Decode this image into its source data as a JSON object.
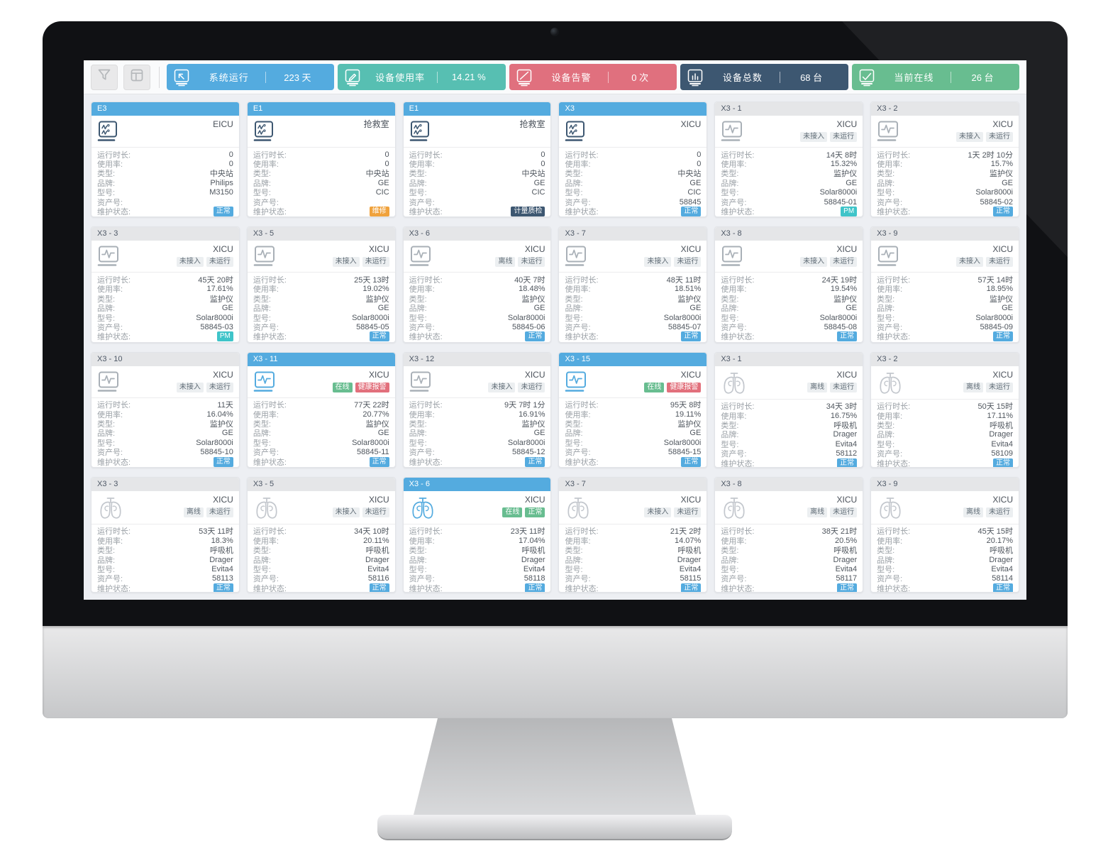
{
  "toolbar": {
    "buttons": [
      {
        "id": "filter",
        "icon": "funnel-icon"
      },
      {
        "id": "layout",
        "icon": "layout-icon"
      }
    ],
    "stats": [
      {
        "id": "system-uptime",
        "icon": "screen-cursor-icon",
        "label": "系统运行",
        "value": "223 天",
        "color": "#54abdf"
      },
      {
        "id": "usage-rate",
        "icon": "screen-edit-icon",
        "label": "设备使用率",
        "value": "14.21 %",
        "color": "#57bfb2"
      },
      {
        "id": "device-alerts",
        "icon": "screen-slash-icon",
        "label": "设备告警",
        "value": "0 次",
        "color": "#e0707e"
      },
      {
        "id": "device-total",
        "icon": "bar-chart-icon",
        "label": "设备总数",
        "value": "68 台",
        "color": "#3d5771"
      },
      {
        "id": "online-now",
        "icon": "screen-check-icon",
        "label": "当前在线",
        "value": "26 台",
        "color": "#68bd90"
      }
    ]
  },
  "field_labels": {
    "uptime": "运行时长:",
    "usage": "使用率:",
    "type": "类型:",
    "brand": "品牌:",
    "model": "型号:",
    "asset": "资产号:",
    "maintenance": "维护状态:"
  },
  "colors": {
    "accent_blue": "#54abdf",
    "navy": "#3d5771",
    "icon_gray": "#a9b0b7",
    "lungs_gray": "#c3c7cd",
    "badge_styles": {
      "gray": {
        "bg": "#eceff1",
        "fg": "#5f6b75"
      },
      "blue": {
        "bg": "#54abdf",
        "fg": "#ffffff"
      },
      "orange": {
        "bg": "#f0a23c",
        "fg": "#ffffff"
      },
      "navy": {
        "bg": "#3d5771",
        "fg": "#ffffff"
      },
      "teal": {
        "bg": "#3fc4c9",
        "fg": "#ffffff"
      },
      "green": {
        "bg": "#68bd90",
        "fg": "#ffffff"
      },
      "red": {
        "bg": "#e2707c",
        "fg": "#ffffff"
      }
    }
  },
  "cards": [
    {
      "title": "E3",
      "header": "blue",
      "icon": "central-station-icon",
      "active": false,
      "location": "EICU",
      "badges": [],
      "uptime": "0",
      "usage": "0",
      "type": "中央站",
      "brand": "Philips",
      "model": "M3150",
      "asset": "",
      "maint": {
        "text": "正常",
        "style": "blue"
      }
    },
    {
      "title": "E1",
      "header": "blue",
      "icon": "central-station-icon",
      "active": false,
      "location": "抢救室",
      "badges": [],
      "uptime": "0",
      "usage": "0",
      "type": "中央站",
      "brand": "GE",
      "model": "CIC",
      "asset": "",
      "maint": {
        "text": "维修",
        "style": "orange"
      }
    },
    {
      "title": "E1",
      "header": "blue",
      "icon": "central-station-icon",
      "active": false,
      "location": "抢救室",
      "badges": [],
      "uptime": "0",
      "usage": "0",
      "type": "中央站",
      "brand": "GE",
      "model": "CIC",
      "asset": "",
      "maint": {
        "text": "计量质检",
        "style": "navy"
      }
    },
    {
      "title": "X3",
      "header": "blue",
      "icon": "central-station-icon",
      "active": false,
      "location": "XICU",
      "badges": [],
      "uptime": "0",
      "usage": "0",
      "type": "中央站",
      "brand": "GE",
      "model": "CIC",
      "asset": "58845",
      "maint": {
        "text": "正常",
        "style": "blue"
      }
    },
    {
      "title": "X3 - 1",
      "header": "gray",
      "icon": "monitor-icon",
      "active": false,
      "location": "XICU",
      "badges": [
        {
          "text": "未接入",
          "style": "gray"
        },
        {
          "text": "未运行",
          "style": "gray"
        }
      ],
      "uptime": "14天 8时",
      "usage": "15.32%",
      "type": "监护仪",
      "brand": "GE",
      "model": "Solar8000i",
      "asset": "58845-01",
      "maint": {
        "text": "PM",
        "style": "teal"
      }
    },
    {
      "title": "X3 - 2",
      "header": "gray",
      "icon": "monitor-icon",
      "active": false,
      "location": "XICU",
      "badges": [
        {
          "text": "未接入",
          "style": "gray"
        },
        {
          "text": "未运行",
          "style": "gray"
        }
      ],
      "uptime": "1天 2时 10分",
      "usage": "15.7%",
      "type": "监护仪",
      "brand": "GE",
      "model": "Solar8000i",
      "asset": "58845-02",
      "maint": {
        "text": "正常",
        "style": "blue"
      }
    },
    {
      "title": "X3 - 3",
      "header": "gray",
      "icon": "monitor-icon",
      "active": false,
      "location": "XICU",
      "badges": [
        {
          "text": "未接入",
          "style": "gray"
        },
        {
          "text": "未运行",
          "style": "gray"
        }
      ],
      "uptime": "45天 20时",
      "usage": "17.61%",
      "type": "监护仪",
      "brand": "GE",
      "model": "Solar8000i",
      "asset": "58845-03",
      "maint": {
        "text": "PM",
        "style": "teal"
      }
    },
    {
      "title": "X3 - 5",
      "header": "gray",
      "icon": "monitor-icon",
      "active": false,
      "location": "XICU",
      "badges": [
        {
          "text": "未接入",
          "style": "gray"
        },
        {
          "text": "未运行",
          "style": "gray"
        }
      ],
      "uptime": "25天 13时",
      "usage": "19.02%",
      "type": "监护仪",
      "brand": "GE",
      "model": "Solar8000i",
      "asset": "58845-05",
      "maint": {
        "text": "正常",
        "style": "blue"
      }
    },
    {
      "title": "X3 - 6",
      "header": "gray",
      "icon": "monitor-icon",
      "active": false,
      "location": "XICU",
      "badges": [
        {
          "text": "离线",
          "style": "gray"
        },
        {
          "text": "未运行",
          "style": "gray"
        }
      ],
      "uptime": "40天 7时",
      "usage": "18.48%",
      "type": "监护仪",
      "brand": "GE",
      "model": "Solar8000i",
      "asset": "58845-06",
      "maint": {
        "text": "正常",
        "style": "blue"
      }
    },
    {
      "title": "X3 - 7",
      "header": "gray",
      "icon": "monitor-icon",
      "active": false,
      "location": "XICU",
      "badges": [
        {
          "text": "未接入",
          "style": "gray"
        },
        {
          "text": "未运行",
          "style": "gray"
        }
      ],
      "uptime": "48天 11时",
      "usage": "18.51%",
      "type": "监护仪",
      "brand": "GE",
      "model": "Solar8000i",
      "asset": "58845-07",
      "maint": {
        "text": "正常",
        "style": "blue"
      }
    },
    {
      "title": "X3 - 8",
      "header": "gray",
      "icon": "monitor-icon",
      "active": false,
      "location": "XICU",
      "badges": [
        {
          "text": "未接入",
          "style": "gray"
        },
        {
          "text": "未运行",
          "style": "gray"
        }
      ],
      "uptime": "24天 19时",
      "usage": "19.54%",
      "type": "监护仪",
      "brand": "GE",
      "model": "Solar8000i",
      "asset": "58845-08",
      "maint": {
        "text": "正常",
        "style": "blue"
      }
    },
    {
      "title": "X3 - 9",
      "header": "gray",
      "icon": "monitor-icon",
      "active": false,
      "location": "XICU",
      "badges": [
        {
          "text": "未接入",
          "style": "gray"
        },
        {
          "text": "未运行",
          "style": "gray"
        }
      ],
      "uptime": "57天 14时",
      "usage": "18.95%",
      "type": "监护仪",
      "brand": "GE",
      "model": "Solar8000i",
      "asset": "58845-09",
      "maint": {
        "text": "正常",
        "style": "blue"
      }
    },
    {
      "title": "X3 - 10",
      "header": "gray",
      "icon": "monitor-icon",
      "active": false,
      "location": "XICU",
      "badges": [
        {
          "text": "未接入",
          "style": "gray"
        },
        {
          "text": "未运行",
          "style": "gray"
        }
      ],
      "uptime": "11天",
      "usage": "16.04%",
      "type": "监护仪",
      "brand": "GE",
      "model": "Solar8000i",
      "asset": "58845-10",
      "maint": {
        "text": "正常",
        "style": "blue"
      }
    },
    {
      "title": "X3 - 11",
      "header": "blue",
      "icon": "monitor-icon",
      "active": true,
      "location": "XICU",
      "badges": [
        {
          "text": "在线",
          "style": "green"
        },
        {
          "text": "健康报警",
          "style": "red"
        }
      ],
      "uptime": "77天 22时",
      "usage": "20.77%",
      "type": "监护仪",
      "brand": "GE",
      "model": "Solar8000i",
      "asset": "58845-11",
      "maint": {
        "text": "正常",
        "style": "blue"
      }
    },
    {
      "title": "X3 - 12",
      "header": "gray",
      "icon": "monitor-icon",
      "active": false,
      "location": "XICU",
      "badges": [
        {
          "text": "未接入",
          "style": "gray"
        },
        {
          "text": "未运行",
          "style": "gray"
        }
      ],
      "uptime": "9天 7时 1分",
      "usage": "16.91%",
      "type": "监护仪",
      "brand": "GE",
      "model": "Solar8000i",
      "asset": "58845-12",
      "maint": {
        "text": "正常",
        "style": "blue"
      }
    },
    {
      "title": "X3 - 15",
      "header": "blue",
      "icon": "monitor-icon",
      "active": true,
      "location": "XICU",
      "badges": [
        {
          "text": "在线",
          "style": "green"
        },
        {
          "text": "健康报警",
          "style": "red"
        }
      ],
      "uptime": "95天 8时",
      "usage": "19.11%",
      "type": "监护仪",
      "brand": "GE",
      "model": "Solar8000i",
      "asset": "58845-15",
      "maint": {
        "text": "正常",
        "style": "blue"
      }
    },
    {
      "title": "X3 - 1",
      "header": "gray",
      "icon": "lungs-icon",
      "active": false,
      "location": "XICU",
      "badges": [
        {
          "text": "离线",
          "style": "gray"
        },
        {
          "text": "未运行",
          "style": "gray"
        }
      ],
      "uptime": "34天 3时",
      "usage": "16.75%",
      "type": "呼吸机",
      "brand": "Drager",
      "model": "Evita4",
      "asset": "58112",
      "maint": {
        "text": "正常",
        "style": "blue"
      }
    },
    {
      "title": "X3 - 2",
      "header": "gray",
      "icon": "lungs-icon",
      "active": false,
      "location": "XICU",
      "badges": [
        {
          "text": "离线",
          "style": "gray"
        },
        {
          "text": "未运行",
          "style": "gray"
        }
      ],
      "uptime": "50天 15时",
      "usage": "17.11%",
      "type": "呼吸机",
      "brand": "Drager",
      "model": "Evita4",
      "asset": "58109",
      "maint": {
        "text": "正常",
        "style": "blue"
      }
    },
    {
      "title": "X3 - 3",
      "header": "gray",
      "icon": "lungs-icon",
      "active": false,
      "location": "XICU",
      "badges": [
        {
          "text": "离线",
          "style": "gray"
        },
        {
          "text": "未运行",
          "style": "gray"
        }
      ],
      "uptime": "53天 11时",
      "usage": "18.3%",
      "type": "呼吸机",
      "brand": "Drager",
      "model": "Evita4",
      "asset": "58113",
      "maint": {
        "text": "正常",
        "style": "blue"
      }
    },
    {
      "title": "X3 - 5",
      "header": "gray",
      "icon": "lungs-icon",
      "active": false,
      "location": "XICU",
      "badges": [
        {
          "text": "未接入",
          "style": "gray"
        },
        {
          "text": "未运行",
          "style": "gray"
        }
      ],
      "uptime": "34天 10时",
      "usage": "20.11%",
      "type": "呼吸机",
      "brand": "Drager",
      "model": "Evita4",
      "asset": "58116",
      "maint": {
        "text": "正常",
        "style": "blue"
      }
    },
    {
      "title": "X3 - 6",
      "header": "blue",
      "icon": "lungs-icon",
      "active": true,
      "location": "XICU",
      "badges": [
        {
          "text": "在线",
          "style": "green"
        },
        {
          "text": "正常",
          "style": "green"
        }
      ],
      "uptime": "23天 11时",
      "usage": "17.04%",
      "type": "呼吸机",
      "brand": "Drager",
      "model": "Evita4",
      "asset": "58118",
      "maint": {
        "text": "正常",
        "style": "blue"
      }
    },
    {
      "title": "X3 - 7",
      "header": "gray",
      "icon": "lungs-icon",
      "active": false,
      "location": "XICU",
      "badges": [
        {
          "text": "未接入",
          "style": "gray"
        },
        {
          "text": "未运行",
          "style": "gray"
        }
      ],
      "uptime": "21天 2时",
      "usage": "14.07%",
      "type": "呼吸机",
      "brand": "Drager",
      "model": "Evita4",
      "asset": "58115",
      "maint": {
        "text": "正常",
        "style": "blue"
      }
    },
    {
      "title": "X3 - 8",
      "header": "gray",
      "icon": "lungs-icon",
      "active": false,
      "location": "XICU",
      "badges": [
        {
          "text": "离线",
          "style": "gray"
        },
        {
          "text": "未运行",
          "style": "gray"
        }
      ],
      "uptime": "38天 21时",
      "usage": "20.5%",
      "type": "呼吸机",
      "brand": "Drager",
      "model": "Evita4",
      "asset": "58117",
      "maint": {
        "text": "正常",
        "style": "blue"
      }
    },
    {
      "title": "X3 - 9",
      "header": "gray",
      "icon": "lungs-icon",
      "active": false,
      "location": "XICU",
      "badges": [
        {
          "text": "离线",
          "style": "gray"
        },
        {
          "text": "未运行",
          "style": "gray"
        }
      ],
      "uptime": "45天 15时",
      "usage": "20.17%",
      "type": "呼吸机",
      "brand": "Drager",
      "model": "Evita4",
      "asset": "58114",
      "maint": {
        "text": "正常",
        "style": "blue"
      }
    }
  ]
}
